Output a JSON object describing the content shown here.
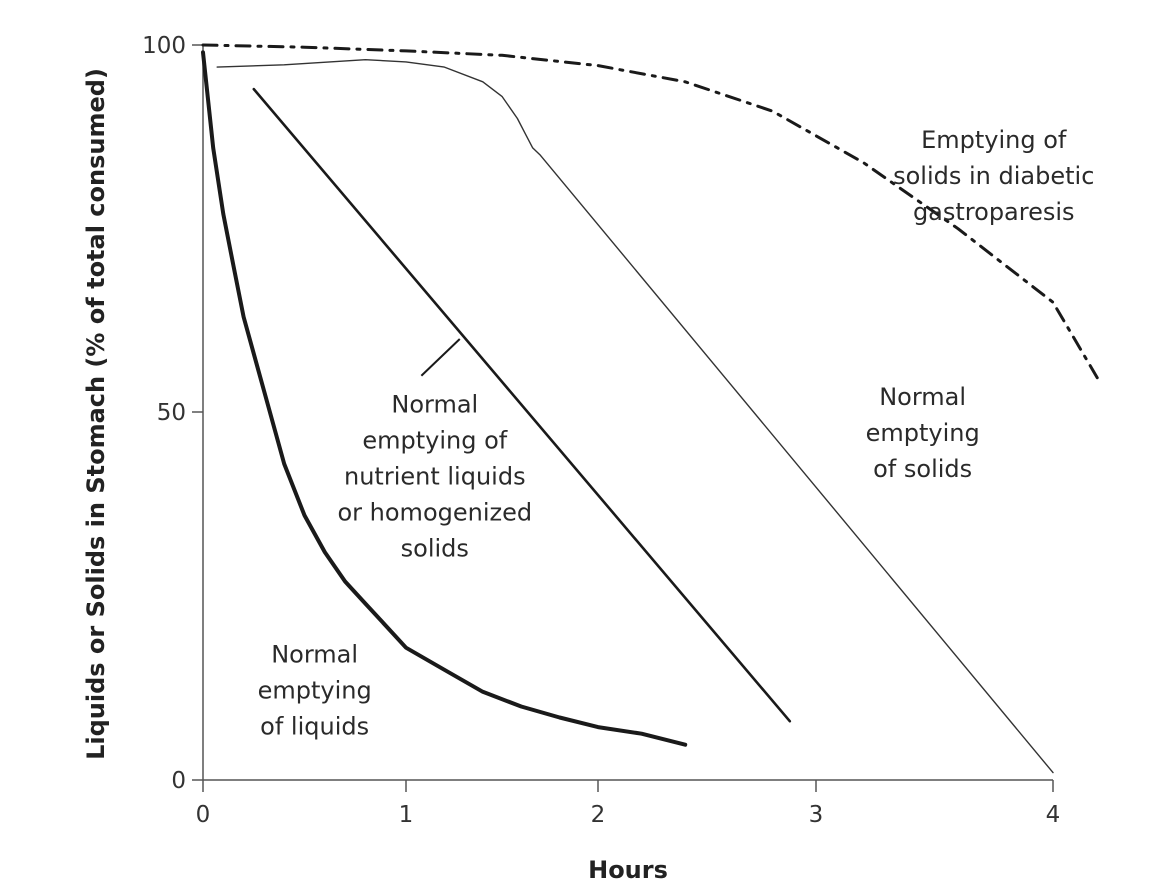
{
  "chart_data": {
    "type": "line",
    "title": "",
    "xlabel": "Hours",
    "ylabel": "Liquids or Solids in Stomach (% of total consumed)",
    "xlim": [
      0,
      4
    ],
    "ylim": [
      0,
      100
    ],
    "x_ticks": [
      "0",
      "1",
      "2",
      "3",
      "4"
    ],
    "y_ticks": [
      "0",
      "50",
      "100"
    ],
    "grid": false,
    "legend": "none",
    "series": [
      {
        "style": "thick",
        "color": "#1a1a1a",
        "x": [
          0,
          0.05,
          0.1,
          0.15,
          0.2,
          0.3,
          0.4,
          0.5,
          0.6,
          0.7,
          0.8,
          0.9,
          1.0,
          1.2,
          1.4,
          1.6,
          1.8,
          2.0,
          2.2,
          2.4
        ],
        "y": [
          99,
          86,
          77,
          70,
          63,
          53,
          43,
          36,
          31,
          27,
          24,
          21,
          18,
          15,
          12,
          10,
          8.5,
          7.2,
          6.3,
          4.8
        ]
      },
      {
        "style": "medium",
        "color": "#1a1a1a",
        "x": [
          0.25,
          2.88
        ],
        "y": [
          94,
          8
        ]
      },
      {
        "style": "thin",
        "color": "#333333",
        "x": [
          0.07,
          0.4,
          0.8,
          1.0,
          1.2,
          1.4,
          1.5,
          1.58,
          1.62,
          1.66,
          1.7,
          4.0
        ],
        "y": [
          97,
          97.3,
          98,
          97.7,
          97,
          95,
          93,
          90,
          88,
          86,
          85,
          1
        ]
      },
      {
        "style": "dash-dot",
        "color": "#1a1a1a",
        "x": [
          0,
          0.5,
          1.0,
          1.5,
          2.0,
          2.4,
          2.8,
          3.2,
          3.6,
          4.0,
          4.2
        ],
        "y": [
          100,
          99.7,
          99.2,
          98.6,
          97.2,
          95,
          91,
          84,
          75,
          65,
          54
        ]
      }
    ],
    "annotations": [
      {
        "lines": [
          "Emptying of",
          "solids in diabetic",
          "gastroparesis"
        ],
        "x": 3.75,
        "y": 86
      },
      {
        "lines": [
          "Normal",
          "emptying",
          "of solids"
        ],
        "x": 3.45,
        "y": 51
      },
      {
        "lines": [
          "Normal",
          "emptying of",
          "nutrient liquids",
          "or homogenized",
          "solids"
        ],
        "x": 1.15,
        "y": 50
      },
      {
        "lines": [
          "Normal",
          "emptying",
          "of liquids"
        ],
        "x": 0.55,
        "y": 16
      }
    ],
    "leader_line": {
      "x": [
        1.08,
        1.28
      ],
      "y": [
        55,
        60
      ]
    }
  }
}
